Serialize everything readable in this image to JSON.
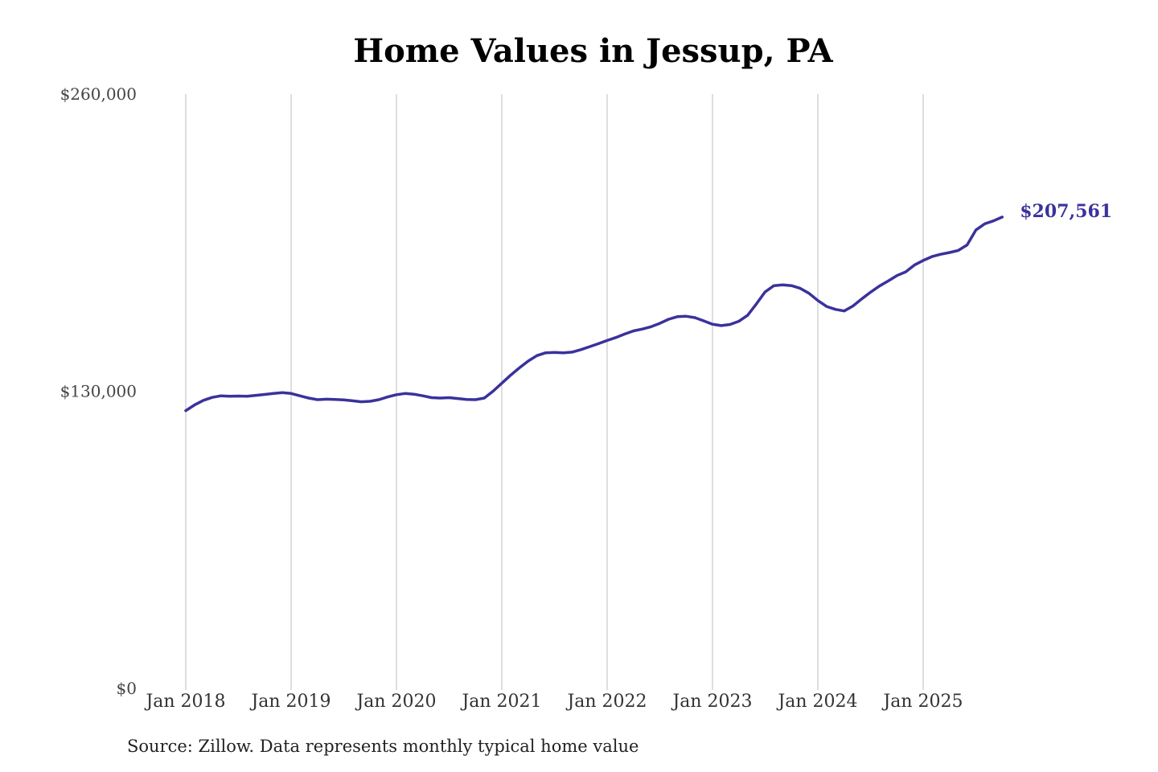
{
  "chart_data": {
    "type": "line",
    "title": "Home Values in Jessup, PA",
    "xlabel": "",
    "ylabel": "",
    "ylim": [
      0,
      260000
    ],
    "y_ticks": [
      {
        "value": 0,
        "label": "$0"
      },
      {
        "value": 130000,
        "label": "$130,000"
      },
      {
        "value": 260000,
        "label": "$260,000"
      }
    ],
    "x_ticks": [
      {
        "date": "2018-01",
        "label": "Jan 2018"
      },
      {
        "date": "2019-01",
        "label": "Jan 2019"
      },
      {
        "date": "2020-01",
        "label": "Jan 2020"
      },
      {
        "date": "2021-01",
        "label": "Jan 2021"
      },
      {
        "date": "2022-01",
        "label": "Jan 2022"
      },
      {
        "date": "2023-01",
        "label": "Jan 2023"
      },
      {
        "date": "2024-01",
        "label": "Jan 2024"
      },
      {
        "date": "2025-01",
        "label": "Jan 2025"
      }
    ],
    "grid": {
      "vertical": true,
      "horizontal": false
    },
    "line_color": "#3a329b",
    "end_label": "$207,561",
    "series": [
      {
        "name": "",
        "x": [
          "2018-01",
          "2018-02",
          "2018-03",
          "2018-04",
          "2018-05",
          "2018-06",
          "2018-07",
          "2018-08",
          "2018-09",
          "2018-10",
          "2018-11",
          "2018-12",
          "2019-01",
          "2019-02",
          "2019-03",
          "2019-04",
          "2019-05",
          "2019-06",
          "2019-07",
          "2019-08",
          "2019-09",
          "2019-10",
          "2019-11",
          "2019-12",
          "2020-01",
          "2020-02",
          "2020-03",
          "2020-04",
          "2020-05",
          "2020-06",
          "2020-07",
          "2020-08",
          "2020-09",
          "2020-10",
          "2020-11",
          "2020-12",
          "2021-01",
          "2021-02",
          "2021-03",
          "2021-04",
          "2021-05",
          "2021-06",
          "2021-07",
          "2021-08",
          "2021-09",
          "2021-10",
          "2021-11",
          "2021-12",
          "2022-01",
          "2022-02",
          "2022-03",
          "2022-04",
          "2022-05",
          "2022-06",
          "2022-07",
          "2022-08",
          "2022-09",
          "2022-10",
          "2022-11",
          "2022-12",
          "2023-01",
          "2023-02",
          "2023-03",
          "2023-04",
          "2023-05",
          "2023-06",
          "2023-07",
          "2023-08",
          "2023-09",
          "2023-10",
          "2023-11",
          "2023-12",
          "2024-01",
          "2024-02",
          "2024-03",
          "2024-04",
          "2024-05",
          "2024-06",
          "2024-07",
          "2024-08",
          "2024-09",
          "2024-10",
          "2024-11",
          "2024-12",
          "2025-01",
          "2025-02",
          "2025-03",
          "2025-04",
          "2025-05",
          "2025-06",
          "2025-07",
          "2025-08",
          "2025-09",
          "2025-10"
        ],
        "values": [
          121500,
          124000,
          126000,
          127300,
          128000,
          127800,
          127900,
          127800,
          128200,
          128600,
          129000,
          129400,
          129000,
          128000,
          127000,
          126300,
          126500,
          126400,
          126200,
          125800,
          125400,
          125600,
          126300,
          127500,
          128500,
          129000,
          128700,
          128000,
          127200,
          127000,
          127200,
          126800,
          126400,
          126300,
          127000,
          130000,
          133500,
          137000,
          140200,
          143200,
          145600,
          146800,
          147000,
          146800,
          147100,
          148200,
          149500,
          150800,
          152200,
          153500,
          155000,
          156400,
          157200,
          158200,
          159700,
          161500,
          162600,
          162800,
          162200,
          160800,
          159300,
          158700,
          159200,
          160600,
          163200,
          168200,
          173500,
          176200,
          176500,
          176200,
          175000,
          172800,
          169700,
          167100,
          165800,
          165100,
          167300,
          170400,
          173300,
          176000,
          178200,
          180600,
          182200,
          185200,
          187200,
          188900,
          189900,
          190700,
          191600,
          194000,
          200500,
          203200,
          204500,
          206200
        ]
      }
    ]
  },
  "source_note": "Source: Zillow. Data represents monthly typical home value"
}
